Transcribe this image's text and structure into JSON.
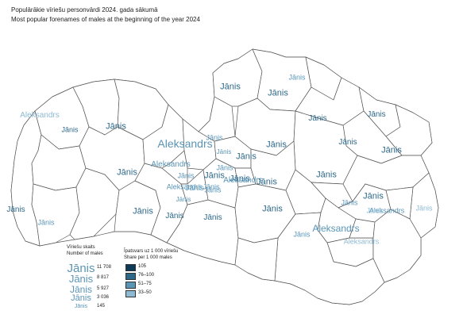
{
  "title_lv": "Populārākie vīriešu personvārdi 2024. gada sākumā",
  "title_en": "Most popular forenames of males at the beginning of the year 2024",
  "colors": {
    "border": "#555555",
    "c105": "#0d3b57",
    "c76_100": "#2d6889",
    "c51_75": "#5a95b6",
    "c33_50": "#8fbad3"
  },
  "map_labels": [
    {
      "name": "Jānis",
      "cls": "c76_100",
      "size": 11
    },
    {
      "name": "Jānis",
      "cls": "c76_100",
      "size": 11
    },
    {
      "name": "Jānis",
      "cls": "c51_75",
      "size": 9
    },
    {
      "name": "Aleksandrs",
      "cls": "c33_50",
      "size": 10
    },
    {
      "name": "Jānis",
      "cls": "c76_100",
      "size": 9
    },
    {
      "name": "Jānis",
      "cls": "c76_100",
      "size": 11
    },
    {
      "name": "Aleksandrs",
      "cls": "c51_75",
      "size": 14
    },
    {
      "name": "Jānis",
      "cls": "c51_75",
      "size": 9
    },
    {
      "name": "Jānis",
      "cls": "c51_75",
      "size": 8
    },
    {
      "name": "Jānis",
      "cls": "c76_100",
      "size": 11
    },
    {
      "name": "Jānis",
      "cls": "c76_100",
      "size": 11
    },
    {
      "name": "Jānis",
      "cls": "c76_100",
      "size": 10
    },
    {
      "name": "Jānis",
      "cls": "c76_100",
      "size": 10
    },
    {
      "name": "Jānis",
      "cls": "c76_100",
      "size": 10
    },
    {
      "name": "Jānis",
      "cls": "c76_100",
      "size": 11
    },
    {
      "name": "Aleksandrs",
      "cls": "c51_75",
      "size": 10
    },
    {
      "name": "Jānis",
      "cls": "c51_75",
      "size": 9
    },
    {
      "name": "Jānis",
      "cls": "c76_100",
      "size": 11
    },
    {
      "name": "Jānis",
      "cls": "c76_100",
      "size": 11
    },
    {
      "name": "Jānis",
      "cls": "c51_75",
      "size": 9
    },
    {
      "name": "Jānis",
      "cls": "c51_75",
      "size": 9
    },
    {
      "name": "Aleksandrs",
      "cls": "c51_75",
      "size": 9
    },
    {
      "name": "Jānis",
      "cls": "c51_75",
      "size": 8
    },
    {
      "name": "Jānis",
      "cls": "c76_100",
      "size": 11
    },
    {
      "name": "Aleksandrs",
      "cls": "c51_75",
      "size": 10
    },
    {
      "name": "Jānis",
      "cls": "c51_75",
      "size": 10
    },
    {
      "name": "Jānis",
      "cls": "c51_75",
      "size": 9
    },
    {
      "name": "Jānis",
      "cls": "c76_100",
      "size": 11
    },
    {
      "name": "Jānis",
      "cls": "c76_100",
      "size": 11
    },
    {
      "name": "Jānis",
      "cls": "c76_100",
      "size": 11
    },
    {
      "name": "Jānis",
      "cls": "c51_75",
      "size": 9
    },
    {
      "name": "Jānis",
      "cls": "c33_50",
      "size": 9
    },
    {
      "name": "Jānis",
      "cls": "c76_100",
      "size": 10
    },
    {
      "name": "Jānis",
      "cls": "c51_75",
      "size": 9
    },
    {
      "name": "Aleksandrs",
      "cls": "c51_75",
      "size": 9
    },
    {
      "name": "Jānis",
      "cls": "c33_50",
      "size": 9
    },
    {
      "name": "Jānis",
      "cls": "c76_100",
      "size": 11
    },
    {
      "name": "Jānis",
      "cls": "c76_100",
      "size": 10
    },
    {
      "name": "Jānis",
      "cls": "c76_100",
      "size": 10
    },
    {
      "name": "Jānis",
      "cls": "c76_100",
      "size": 11
    },
    {
      "name": "Jānis",
      "cls": "c51_75",
      "size": 9
    },
    {
      "name": "Aleksandrs",
      "cls": "c51_75",
      "size": 12
    },
    {
      "name": "Aleksandrs",
      "cls": "c33_50",
      "size": 9
    }
  ],
  "legend_count": {
    "header_lv": "Vīriešu skaits",
    "header_en": "Number of males",
    "rows": [
      {
        "name": "Jānis",
        "value": "11 708",
        "size": 15
      },
      {
        "name": "Jānis",
        "value": "8 817",
        "size": 13
      },
      {
        "name": "Jānis",
        "value": "5 927",
        "size": 12
      },
      {
        "name": "Jānis",
        "value": "3 036",
        "size": 11
      },
      {
        "name": "Jānis",
        "value": "145",
        "size": 7
      }
    ]
  },
  "legend_share": {
    "header_lv": "Īpatsvars uz 1 000 vīriešu",
    "header_en": "Share per 1 000 males",
    "classes": [
      {
        "label": "105",
        "color": "#0d3b57"
      },
      {
        "label": "76–100",
        "color": "#2d6889"
      },
      {
        "label": "51–75",
        "color": "#5a95b6"
      },
      {
        "label": "33–50",
        "color": "#8fbad3"
      }
    ]
  }
}
